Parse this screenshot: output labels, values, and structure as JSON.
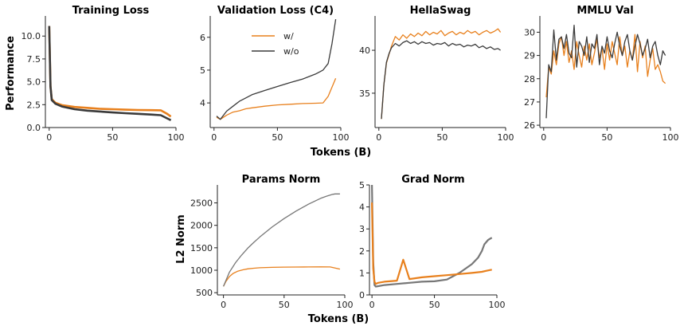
{
  "figure": {
    "row1_xlabel": "Tokens (B)",
    "row2_xlabel": "Tokens (B)",
    "row1_ylabel": "Performance",
    "row2_ylabel": "L2 Norm",
    "legend": [
      "w/",
      "w/o"
    ]
  },
  "colors": {
    "with": "#e8801d",
    "without": "#3a3a3a",
    "without_norm": "#777777"
  },
  "chart_data": [
    {
      "type": "line",
      "title": "Training Loss",
      "xlim": [
        -3,
        100
      ],
      "ylim": [
        0,
        12.2
      ],
      "xticks": [
        0,
        50,
        100
      ],
      "yticks": [
        0,
        2.5,
        5,
        7.5,
        10
      ],
      "ytick_labels": [
        "0.0",
        "2.5",
        "5.0",
        "7.5",
        "10.0"
      ],
      "series": [
        {
          "name": "w/",
          "x": [
            0,
            1,
            2,
            5,
            10,
            20,
            30,
            40,
            50,
            60,
            70,
            80,
            88,
            93,
            96
          ],
          "y": [
            11.1,
            4.5,
            3.1,
            2.7,
            2.45,
            2.25,
            2.15,
            2.05,
            2.0,
            1.95,
            1.92,
            1.9,
            1.88,
            1.5,
            1.2
          ]
        },
        {
          "name": "w/o",
          "x": [
            0,
            1,
            2,
            5,
            10,
            20,
            30,
            40,
            50,
            60,
            70,
            80,
            88,
            93,
            96
          ],
          "y": [
            11.1,
            4.5,
            3.0,
            2.6,
            2.3,
            2.0,
            1.85,
            1.75,
            1.65,
            1.57,
            1.5,
            1.42,
            1.35,
            1.0,
            0.8
          ]
        }
      ]
    },
    {
      "type": "line",
      "title": "Validation Loss (C4)",
      "xlim": [
        -3,
        100
      ],
      "ylim": [
        3.25,
        6.65
      ],
      "xticks": [
        0,
        50,
        100
      ],
      "yticks": [
        4,
        5,
        6
      ],
      "ytick_labels": [
        "4",
        "5",
        "6"
      ],
      "series": [
        {
          "name": "w/",
          "x": [
            2,
            5,
            10,
            15,
            20,
            25,
            30,
            40,
            50,
            60,
            70,
            80,
            86,
            90,
            96
          ],
          "y": [
            3.56,
            3.5,
            3.63,
            3.72,
            3.76,
            3.82,
            3.85,
            3.9,
            3.94,
            3.96,
            3.98,
            3.99,
            4.0,
            4.2,
            4.75
          ]
        },
        {
          "name": "w/o",
          "x": [
            2,
            5,
            10,
            15,
            20,
            25,
            30,
            40,
            50,
            60,
            70,
            80,
            86,
            90,
            93,
            96
          ],
          "y": [
            3.6,
            3.5,
            3.75,
            3.9,
            4.05,
            4.15,
            4.25,
            4.38,
            4.5,
            4.62,
            4.73,
            4.88,
            5.0,
            5.2,
            5.8,
            6.55
          ]
        }
      ]
    },
    {
      "type": "line",
      "title": "HellaSwag",
      "xlim": [
        -3,
        100
      ],
      "ylim": [
        31,
        44
      ],
      "xticks": [
        0,
        50,
        100
      ],
      "yticks": [
        35,
        40
      ],
      "ytick_labels": [
        "35",
        "40"
      ],
      "series": [
        {
          "name": "w/",
          "x": [
            2,
            4,
            6,
            8,
            10,
            13,
            16,
            19,
            22,
            25,
            28,
            31,
            34,
            37,
            40,
            43,
            46,
            49,
            52,
            55,
            58,
            61,
            64,
            67,
            70,
            73,
            76,
            79,
            82,
            85,
            88,
            91,
            94,
            96
          ],
          "y": [
            32,
            36,
            38.5,
            39.5,
            40.5,
            41.6,
            41.2,
            41.8,
            41.4,
            41.9,
            41.6,
            42.0,
            41.7,
            42.2,
            41.8,
            42.1,
            41.9,
            42.3,
            41.7,
            42.0,
            42.2,
            41.8,
            42.1,
            41.9,
            42.3,
            42.0,
            42.2,
            41.8,
            42.1,
            42.3,
            42.0,
            42.2,
            42.5,
            42.1
          ]
        },
        {
          "name": "w/o",
          "x": [
            2,
            4,
            6,
            8,
            10,
            13,
            16,
            19,
            22,
            25,
            28,
            31,
            34,
            37,
            40,
            43,
            46,
            49,
            52,
            55,
            58,
            61,
            64,
            67,
            70,
            73,
            76,
            79,
            82,
            85,
            88,
            91,
            94,
            96
          ],
          "y": [
            32,
            36,
            38.6,
            39.6,
            40.3,
            40.8,
            40.5,
            40.9,
            41.1,
            40.8,
            41.0,
            40.7,
            41.0,
            40.8,
            40.9,
            40.6,
            40.8,
            40.7,
            40.9,
            40.5,
            40.8,
            40.6,
            40.7,
            40.4,
            40.6,
            40.5,
            40.7,
            40.3,
            40.5,
            40.2,
            40.4,
            40.1,
            40.2,
            40.0
          ]
        }
      ]
    },
    {
      "type": "line",
      "title": "MMLU Val",
      "xlim": [
        -3,
        100
      ],
      "ylim": [
        25.9,
        30.7
      ],
      "xticks": [
        0,
        50,
        100
      ],
      "yticks": [
        26,
        27,
        28,
        29,
        30
      ],
      "ytick_labels": [
        "26",
        "27",
        "28",
        "29",
        "30"
      ],
      "series": [
        {
          "name": "w/",
          "x": [
            2,
            4,
            6,
            8,
            10,
            12,
            14,
            16,
            18,
            20,
            22,
            24,
            26,
            28,
            30,
            32,
            34,
            36,
            38,
            40,
            42,
            44,
            46,
            48,
            50,
            52,
            54,
            56,
            58,
            60,
            62,
            64,
            66,
            68,
            70,
            72,
            74,
            76,
            78,
            80,
            82,
            84,
            86,
            88,
            90,
            92,
            94,
            96
          ],
          "y": [
            27.2,
            28.5,
            28.2,
            29.2,
            28.6,
            29.5,
            29.8,
            29.0,
            29.6,
            28.7,
            29.2,
            28.4,
            29.6,
            29.0,
            28.5,
            29.4,
            28.8,
            29.5,
            28.6,
            29.1,
            29.7,
            28.9,
            29.3,
            28.4,
            29.5,
            28.8,
            29.6,
            29.1,
            28.6,
            29.8,
            29.0,
            29.4,
            28.5,
            29.2,
            28.8,
            29.9,
            28.3,
            29.6,
            28.9,
            29.4,
            28.1,
            28.8,
            29.3,
            28.4,
            28.6,
            28.3,
            27.9,
            27.8
          ]
        },
        {
          "name": "w/o",
          "x": [
            2,
            4,
            6,
            8,
            10,
            12,
            14,
            16,
            18,
            20,
            22,
            24,
            26,
            28,
            30,
            32,
            34,
            36,
            38,
            40,
            42,
            44,
            46,
            48,
            50,
            52,
            54,
            56,
            58,
            60,
            62,
            64,
            66,
            68,
            70,
            72,
            74,
            76,
            78,
            80,
            82,
            84,
            86,
            88,
            90,
            92,
            94,
            96
          ],
          "y": [
            26.3,
            28.6,
            28.3,
            30.1,
            28.8,
            29.7,
            29.8,
            29.3,
            29.9,
            29.1,
            28.9,
            30.3,
            28.5,
            29.6,
            29.4,
            29.0,
            29.8,
            28.7,
            29.5,
            29.3,
            29.9,
            28.6,
            29.4,
            29.1,
            29.8,
            29.2,
            28.9,
            29.5,
            30.0,
            29.4,
            29.0,
            29.6,
            29.9,
            29.2,
            28.8,
            29.4,
            29.9,
            29.5,
            29.0,
            29.3,
            29.7,
            28.9,
            29.4,
            29.6,
            29.0,
            28.6,
            29.2,
            29.0
          ]
        }
      ]
    },
    {
      "type": "line",
      "title": "Params Norm",
      "xlim": [
        -5,
        100
      ],
      "ylim": [
        450,
        2900
      ],
      "xticks": [
        0,
        50,
        100
      ],
      "yticks": [
        500,
        1000,
        1500,
        2000,
        2500
      ],
      "ytick_labels": [
        "500",
        "1000",
        "1500",
        "2000",
        "2500"
      ],
      "series": [
        {
          "name": "w/",
          "x": [
            0,
            2,
            5,
            8,
            12,
            16,
            20,
            25,
            30,
            40,
            50,
            60,
            70,
            80,
            88,
            92,
            96
          ],
          "y": [
            640,
            750,
            860,
            930,
            980,
            1010,
            1030,
            1045,
            1055,
            1065,
            1070,
            1072,
            1074,
            1075,
            1073,
            1050,
            1025
          ]
        },
        {
          "name": "w/o",
          "x": [
            0,
            5,
            10,
            15,
            20,
            25,
            30,
            40,
            50,
            60,
            70,
            80,
            85,
            90,
            92,
            96
          ],
          "y": [
            640,
            960,
            1170,
            1340,
            1490,
            1620,
            1740,
            1960,
            2150,
            2320,
            2470,
            2600,
            2650,
            2690,
            2700,
            2700
          ]
        }
      ]
    },
    {
      "type": "line",
      "title": "Grad Norm",
      "xlim": [
        -2,
        100
      ],
      "ylim": [
        0,
        5
      ],
      "xticks": [
        0,
        50,
        100
      ],
      "yticks": [
        0,
        1,
        2,
        3,
        4,
        5
      ],
      "ytick_labels": [
        "0",
        "1",
        "2",
        "3",
        "4",
        "5"
      ],
      "series": [
        {
          "name": "w/o",
          "x": [
            0,
            1,
            2,
            3,
            5,
            10,
            20,
            30,
            40,
            50,
            60,
            65,
            70,
            75,
            80,
            85,
            88,
            90,
            93,
            96
          ],
          "y": [
            5.0,
            1.5,
            0.45,
            0.38,
            0.4,
            0.45,
            0.5,
            0.55,
            0.6,
            0.62,
            0.7,
            0.85,
            1.0,
            1.2,
            1.4,
            1.7,
            2.0,
            2.3,
            2.5,
            2.6
          ]
        },
        {
          "name": "w/",
          "x": [
            0,
            1,
            2,
            3,
            5,
            10,
            20,
            25,
            30,
            40,
            50,
            60,
            70,
            80,
            88,
            92,
            96
          ],
          "y": [
            4.2,
            1.2,
            0.6,
            0.5,
            0.55,
            0.6,
            0.65,
            1.6,
            0.72,
            0.8,
            0.85,
            0.9,
            0.95,
            1.0,
            1.05,
            1.1,
            1.15
          ]
        }
      ]
    }
  ]
}
